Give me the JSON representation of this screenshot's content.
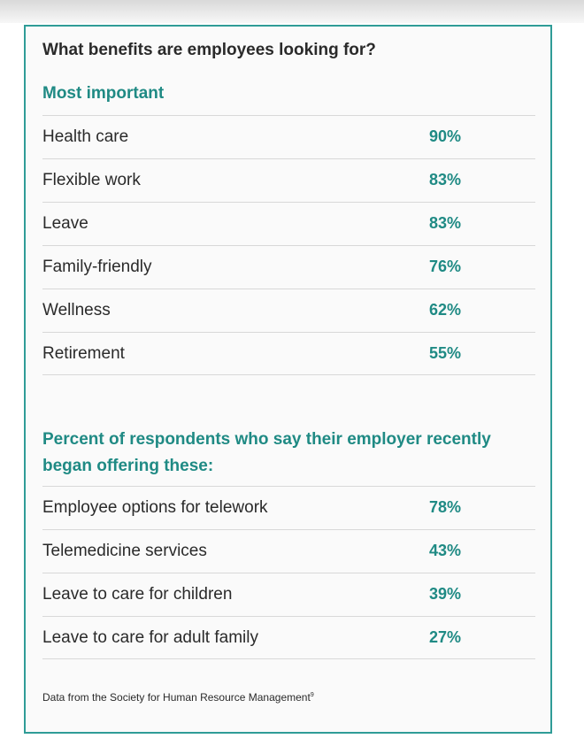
{
  "title": "What benefits are employees looking for?",
  "section1": {
    "heading": "Most important",
    "rows": [
      {
        "label": "Health care",
        "value": "90%"
      },
      {
        "label": "Flexible work",
        "value": "83%"
      },
      {
        "label": "Leave",
        "value": "83%"
      },
      {
        "label": "Family-friendly",
        "value": "76%"
      },
      {
        "label": "Wellness",
        "value": "62%"
      },
      {
        "label": "Retirement",
        "value": "55%"
      }
    ]
  },
  "section2": {
    "heading": "Percent of respondents who say their employer recently began offering these:",
    "rows": [
      {
        "label": "Employee options for telework",
        "value": "78%"
      },
      {
        "label": "Telemedicine services",
        "value": "43%"
      },
      {
        "label": "Leave to care for children",
        "value": "39%"
      },
      {
        "label": "Leave to care for adult family",
        "value": "27%"
      }
    ]
  },
  "footnote": {
    "text": "Data from the Society for Human Resource Management",
    "ref": "9"
  },
  "colors": {
    "accent": "#1f8a84",
    "border": "#2f9c97",
    "text": "#2a2a2a"
  }
}
